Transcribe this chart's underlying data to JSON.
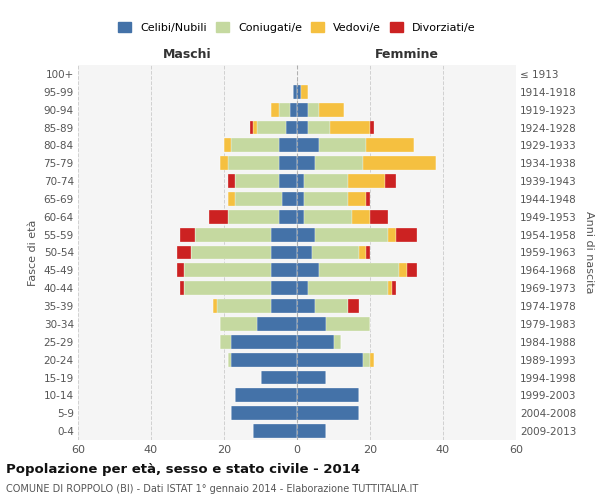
{
  "age_groups": [
    "0-4",
    "5-9",
    "10-14",
    "15-19",
    "20-24",
    "25-29",
    "30-34",
    "35-39",
    "40-44",
    "45-49",
    "50-54",
    "55-59",
    "60-64",
    "65-69",
    "70-74",
    "75-79",
    "80-84",
    "85-89",
    "90-94",
    "95-99",
    "100+"
  ],
  "birth_years": [
    "2009-2013",
    "2004-2008",
    "1999-2003",
    "1994-1998",
    "1989-1993",
    "1984-1988",
    "1979-1983",
    "1974-1978",
    "1969-1973",
    "1964-1968",
    "1959-1963",
    "1954-1958",
    "1949-1953",
    "1944-1948",
    "1939-1943",
    "1934-1938",
    "1929-1933",
    "1924-1928",
    "1919-1923",
    "1914-1918",
    "≤ 1913"
  ],
  "maschi": {
    "celibi": [
      12,
      18,
      17,
      10,
      18,
      18,
      11,
      7,
      7,
      7,
      7,
      7,
      5,
      4,
      5,
      5,
      5,
      3,
      2,
      1,
      0
    ],
    "coniugati": [
      0,
      0,
      0,
      0,
      1,
      3,
      10,
      15,
      24,
      24,
      22,
      21,
      14,
      13,
      12,
      14,
      13,
      8,
      3,
      0,
      0
    ],
    "vedovi": [
      0,
      0,
      0,
      0,
      0,
      0,
      0,
      1,
      0,
      0,
      0,
      0,
      0,
      2,
      0,
      2,
      2,
      1,
      2,
      0,
      0
    ],
    "divorziati": [
      0,
      0,
      0,
      0,
      0,
      0,
      0,
      0,
      1,
      2,
      4,
      4,
      5,
      0,
      2,
      0,
      0,
      1,
      0,
      0,
      0
    ]
  },
  "femmine": {
    "nubili": [
      8,
      17,
      17,
      8,
      18,
      10,
      8,
      5,
      3,
      6,
      4,
      5,
      2,
      2,
      2,
      5,
      6,
      3,
      3,
      1,
      0
    ],
    "coniugate": [
      0,
      0,
      0,
      0,
      2,
      2,
      12,
      9,
      22,
      22,
      13,
      20,
      13,
      12,
      12,
      13,
      13,
      6,
      3,
      0,
      0
    ],
    "vedove": [
      0,
      0,
      0,
      0,
      1,
      0,
      0,
      0,
      1,
      2,
      2,
      2,
      5,
      5,
      10,
      20,
      13,
      11,
      7,
      2,
      0
    ],
    "divorziate": [
      0,
      0,
      0,
      0,
      0,
      0,
      0,
      3,
      1,
      3,
      1,
      6,
      5,
      1,
      3,
      0,
      0,
      1,
      0,
      0,
      0
    ]
  },
  "colors": {
    "celibi": "#4472a8",
    "coniugati": "#c5d9a0",
    "vedovi": "#f5c040",
    "divorziati": "#cc2222"
  },
  "legend_labels": [
    "Celibi/Nubili",
    "Coniugati/e",
    "Vedovi/e",
    "Divorziati/e"
  ],
  "xlim": 60,
  "title": "Popolazione per età, sesso e stato civile - 2014",
  "subtitle": "COMUNE DI ROPPOLO (BI) - Dati ISTAT 1° gennaio 2014 - Elaborazione TUTTITALIA.IT",
  "xlabel_left": "Maschi",
  "xlabel_right": "Femmine",
  "ylabel_left": "Fasce di età",
  "ylabel_right": "Anni di nascita",
  "bg_color": "#f5f5f5",
  "grid_color": "#cccccc"
}
